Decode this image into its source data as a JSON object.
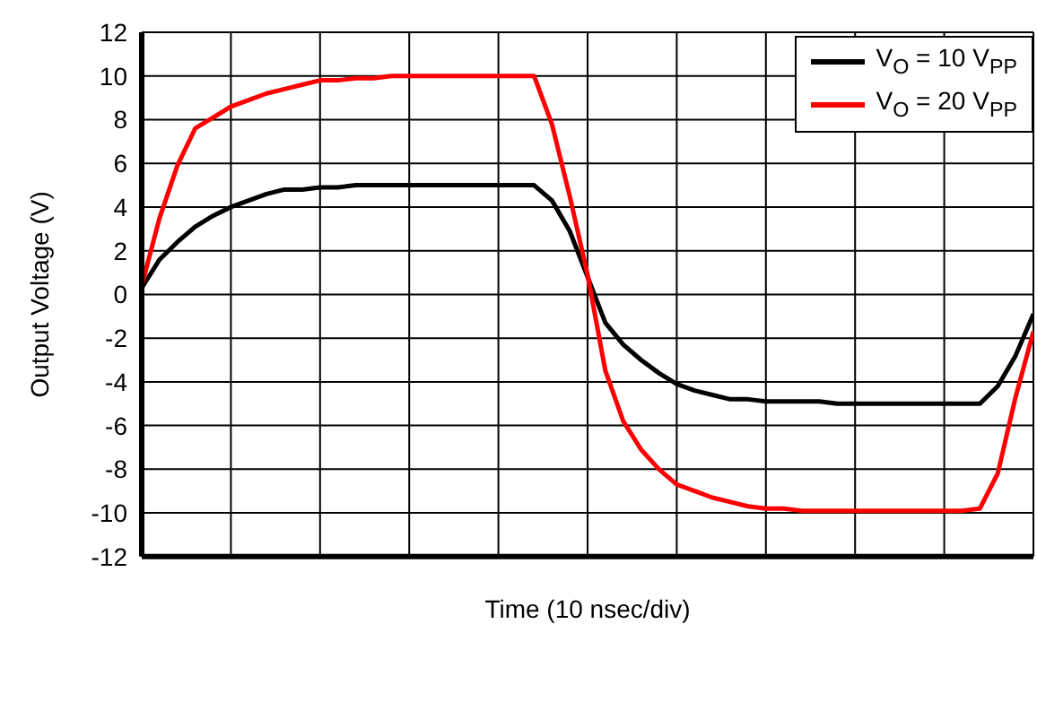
{
  "chart_data": {
    "type": "line",
    "xlabel": "Time (10 nsec/div)",
    "ylabel": "Output Voltage (V)",
    "categories": [
      null,
      null,
      null,
      null,
      null,
      null,
      null,
      null,
      null,
      null,
      null,
      null,
      null,
      null,
      null,
      null,
      null,
      null,
      null,
      null,
      null,
      null,
      null,
      null,
      null,
      null,
      null,
      null,
      null,
      null,
      null,
      null,
      null,
      null,
      null,
      null,
      null,
      null,
      null,
      null,
      null,
      null,
      null,
      null,
      null,
      null,
      null,
      null,
      null,
      null,
      null
    ],
    "ylim": [
      -12,
      12
    ],
    "yticks": [
      -12,
      -10,
      -8,
      -6,
      -4,
      -2,
      0,
      2,
      4,
      6,
      8,
      10,
      12
    ],
    "tick_labels": "y",
    "grid": true,
    "legend": "top right",
    "marker": "none",
    "line_style": "solid",
    "series": [
      {
        "name": "V$_{O}$ = 10 V$_{PP}$",
        "color": "#000000",
        "values": [
          0.3,
          1.6,
          2.4,
          3.1,
          3.6,
          4.0,
          4.3,
          4.6,
          4.8,
          4.8,
          4.9,
          4.9,
          5,
          5,
          5,
          5,
          5,
          5,
          5,
          5,
          5,
          5,
          5,
          4.3,
          2.9,
          0.8,
          -1.3,
          -2.3,
          -3.0,
          -3.6,
          -4.1,
          -4.4,
          -4.6,
          -4.8,
          -4.8,
          -4.9,
          -4.9,
          -4.9,
          -4.9,
          -5,
          -5,
          -5,
          -5,
          -5,
          -5,
          -5,
          -5,
          -5,
          -4.2,
          -2.8,
          -0.9
        ]
      },
      {
        "name": "V$_{O}$ = 20 V$_{PP}$",
        "color": "#ff0000",
        "values": [
          0.4,
          3.5,
          5.9,
          7.6,
          8.1,
          8.6,
          8.9,
          9.2,
          9.4,
          9.6,
          9.8,
          9.8,
          9.9,
          9.9,
          10,
          10,
          10,
          10,
          10,
          10,
          10,
          10,
          10,
          7.8,
          4.5,
          0.9,
          -3.5,
          -5.8,
          -7.1,
          -8.0,
          -8.7,
          -9.0,
          -9.3,
          -9.5,
          -9.7,
          -9.8,
          -9.8,
          -9.9,
          -9.9,
          -9.9,
          -9.9,
          -9.9,
          -9.9,
          -9.9,
          -9.9,
          -9.9,
          -9.9,
          -9.8,
          -8.2,
          -4.7,
          -1.7
        ]
      }
    ]
  }
}
